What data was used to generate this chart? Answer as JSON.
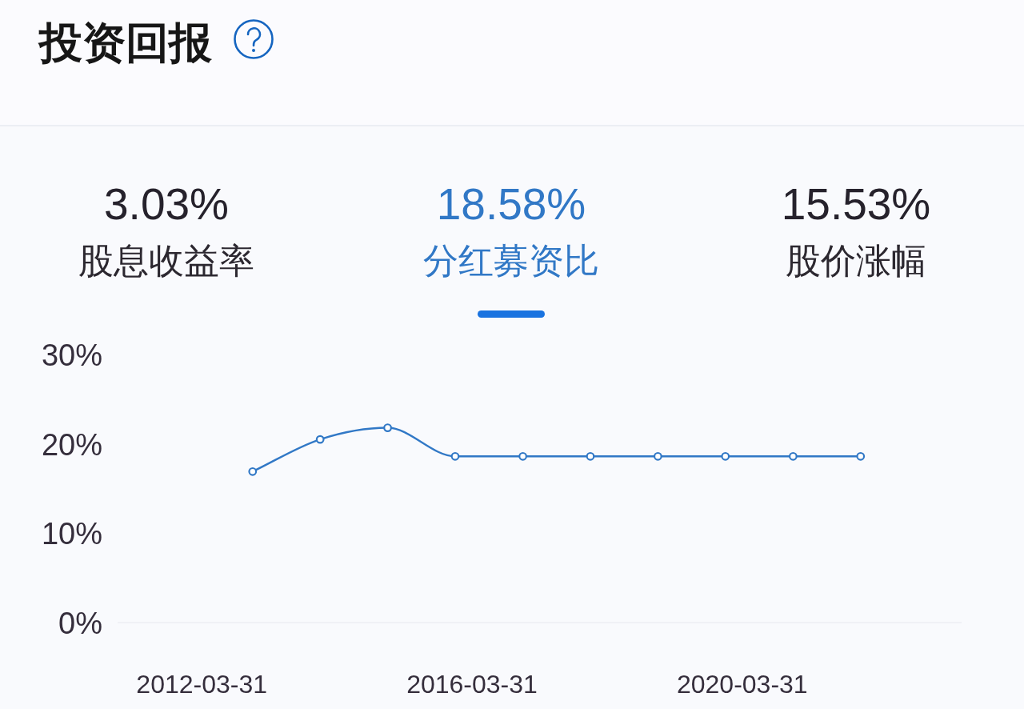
{
  "chart_data": {
    "type": "line",
    "title": "投资回报",
    "annotations": [
      "3.03%",
      "股息收益率",
      "18.58%",
      "分红募资比",
      "15.53%",
      "股价涨幅"
    ],
    "x": [
      "2012-12-31",
      "2013-12-31",
      "2014-12-31",
      "2015-12-31",
      "2016-12-31",
      "2017-12-31",
      "2018-12-31",
      "2019-12-31",
      "2020-12-31",
      "2021-12-31"
    ],
    "series": [
      {
        "color": "#3178c6",
        "values": [
          16.9,
          20.5,
          21.8,
          18.6,
          18.6,
          18.6,
          18.6,
          18.6,
          18.6,
          18.6
        ]
      }
    ],
    "xlim": [
      "2011-01-01",
      "2023-06-30"
    ],
    "xticks": [
      "2012-03-31",
      "2016-03-31",
      "2020-03-31"
    ],
    "ylim": [
      0,
      30
    ],
    "yticks": [
      {
        "value": 0,
        "label": "0%"
      },
      {
        "value": 10,
        "label": "10%"
      },
      {
        "value": 20,
        "label": "20%"
      },
      {
        "value": 30,
        "label": "30%"
      }
    ],
    "marker": "circle"
  }
}
